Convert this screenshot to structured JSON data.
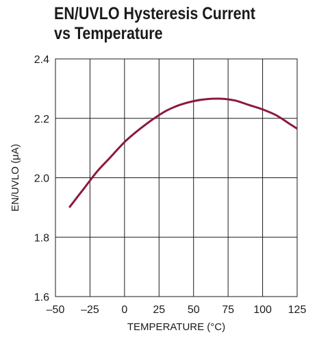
{
  "chart_data": {
    "type": "line",
    "title_line1": "EN/UVLO Hysteresis Current",
    "title_line2": "vs Temperature",
    "xlabel": "TEMPERATURE (°C)",
    "ylabel": "EN/UVLO (μA)",
    "xlim": [
      -50,
      125
    ],
    "ylim": [
      1.6,
      2.4
    ],
    "x_ticks": [
      -50,
      -25,
      0,
      25,
      50,
      75,
      100,
      125
    ],
    "x_tick_labels": [
      "–50",
      "–25",
      "0",
      "25",
      "50",
      "75",
      "100",
      "125"
    ],
    "y_ticks": [
      1.6,
      1.8,
      2.0,
      2.2,
      2.4
    ],
    "y_tick_labels": [
      "1.6",
      "1.8",
      "2.0",
      "2.2",
      "2.4"
    ],
    "grid": true,
    "line_color": "#8b1a3a",
    "series": [
      {
        "x": [
          -40,
          -30,
          -20,
          -10,
          0,
          10,
          20,
          30,
          40,
          50,
          60,
          70,
          80,
          90,
          100,
          110,
          120,
          125
        ],
        "values": [
          1.9,
          1.96,
          2.02,
          2.07,
          2.12,
          2.16,
          2.195,
          2.225,
          2.245,
          2.258,
          2.265,
          2.266,
          2.26,
          2.245,
          2.23,
          2.21,
          2.18,
          2.165
        ]
      }
    ]
  }
}
